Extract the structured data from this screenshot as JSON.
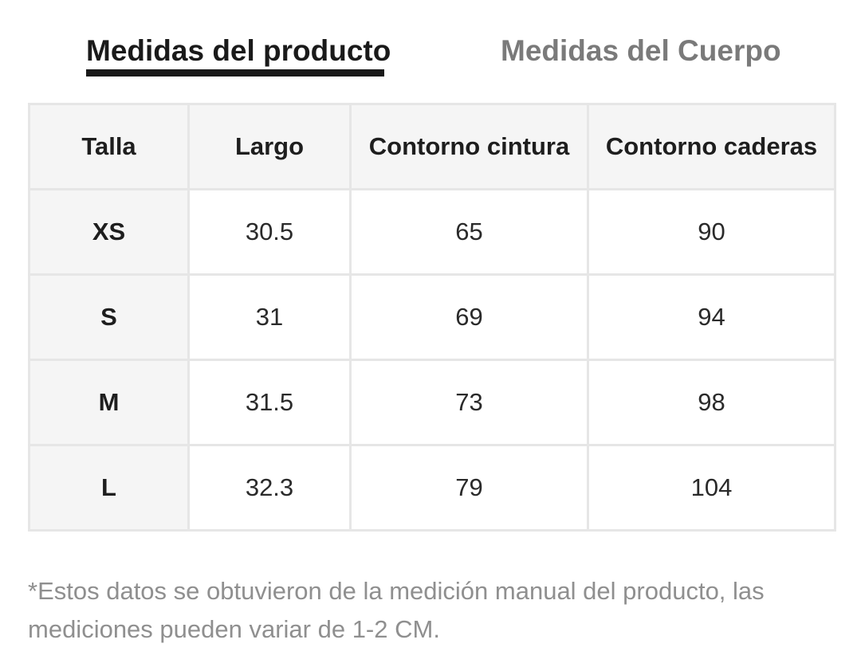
{
  "tabs": {
    "active": "Medidas del producto",
    "inactive": "Medidas del Cuerpo"
  },
  "table": {
    "headers": [
      "Talla",
      "Largo",
      "Contorno cintura",
      "Contorno caderas"
    ],
    "rows": [
      [
        "XS",
        "30.5",
        "65",
        "90"
      ],
      [
        "S",
        "31",
        "69",
        "94"
      ],
      [
        "M",
        "31.5",
        "73",
        "98"
      ],
      [
        "L",
        "32.3",
        "79",
        "104"
      ]
    ]
  },
  "note": "*Estos datos se obtuvieron de la medición manual del producto, las mediciones pueden variar de 1-2 CM."
}
